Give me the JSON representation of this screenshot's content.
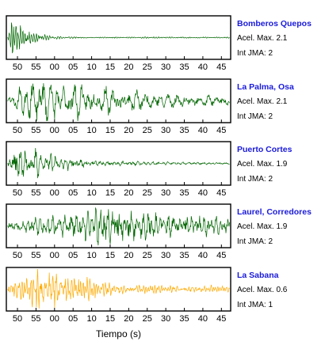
{
  "chart_data": {
    "type": "line",
    "xlabel": "Tiempo (s)",
    "tick_labels": [
      "50",
      "55",
      "00",
      "05",
      "10",
      "15",
      "20",
      "25",
      "30",
      "35",
      "40",
      "45"
    ],
    "x_range": [
      47,
      107.5
    ],
    "series": [
      {
        "name": "Bomberos Quepos",
        "accel_label": "Acel. Max. 2.1",
        "jma_label": "Int JMA: 2",
        "color": "#006600",
        "onset": 47.5,
        "peak_t": 48.5,
        "decay": 4.0,
        "period": 0.9,
        "tail": 0.03,
        "seed": 11
      },
      {
        "name": "La Palma, Osa",
        "accel_label": "Acel. Max. 2.1",
        "jma_label": "Int JMA: 2",
        "color": "#006600",
        "onset": 47.5,
        "peak_t": 55.0,
        "decay": 28.0,
        "period": 2.0,
        "tail": 0.12,
        "seed": 23
      },
      {
        "name": "Puerto Cortes",
        "accel_label": "Acel. Max. 1.9",
        "jma_label": "Int JMA: 2",
        "color": "#006600",
        "onset": 47.5,
        "peak_t": 50.0,
        "decay": 10.0,
        "period": 1.6,
        "tail": 0.06,
        "seed": 37
      },
      {
        "name": "Laurel, Corredores",
        "accel_label": "Acel. Max. 1.9",
        "jma_label": "Int JMA: 2",
        "color": "#006600",
        "onset": 47.5,
        "peak_t": 76.0,
        "decay": 26.0,
        "period": 1.4,
        "tail": 0.25,
        "seed": 53
      },
      {
        "name": "La Sabana",
        "accel_label": "Acel. Max. 0.6",
        "jma_label": "Int JMA: 1",
        "color": "#ffaa00",
        "onset": 47.5,
        "peak_t": 60.0,
        "decay": 9.0,
        "period": 0.7,
        "tail": 0.12,
        "seed": 71
      }
    ]
  }
}
